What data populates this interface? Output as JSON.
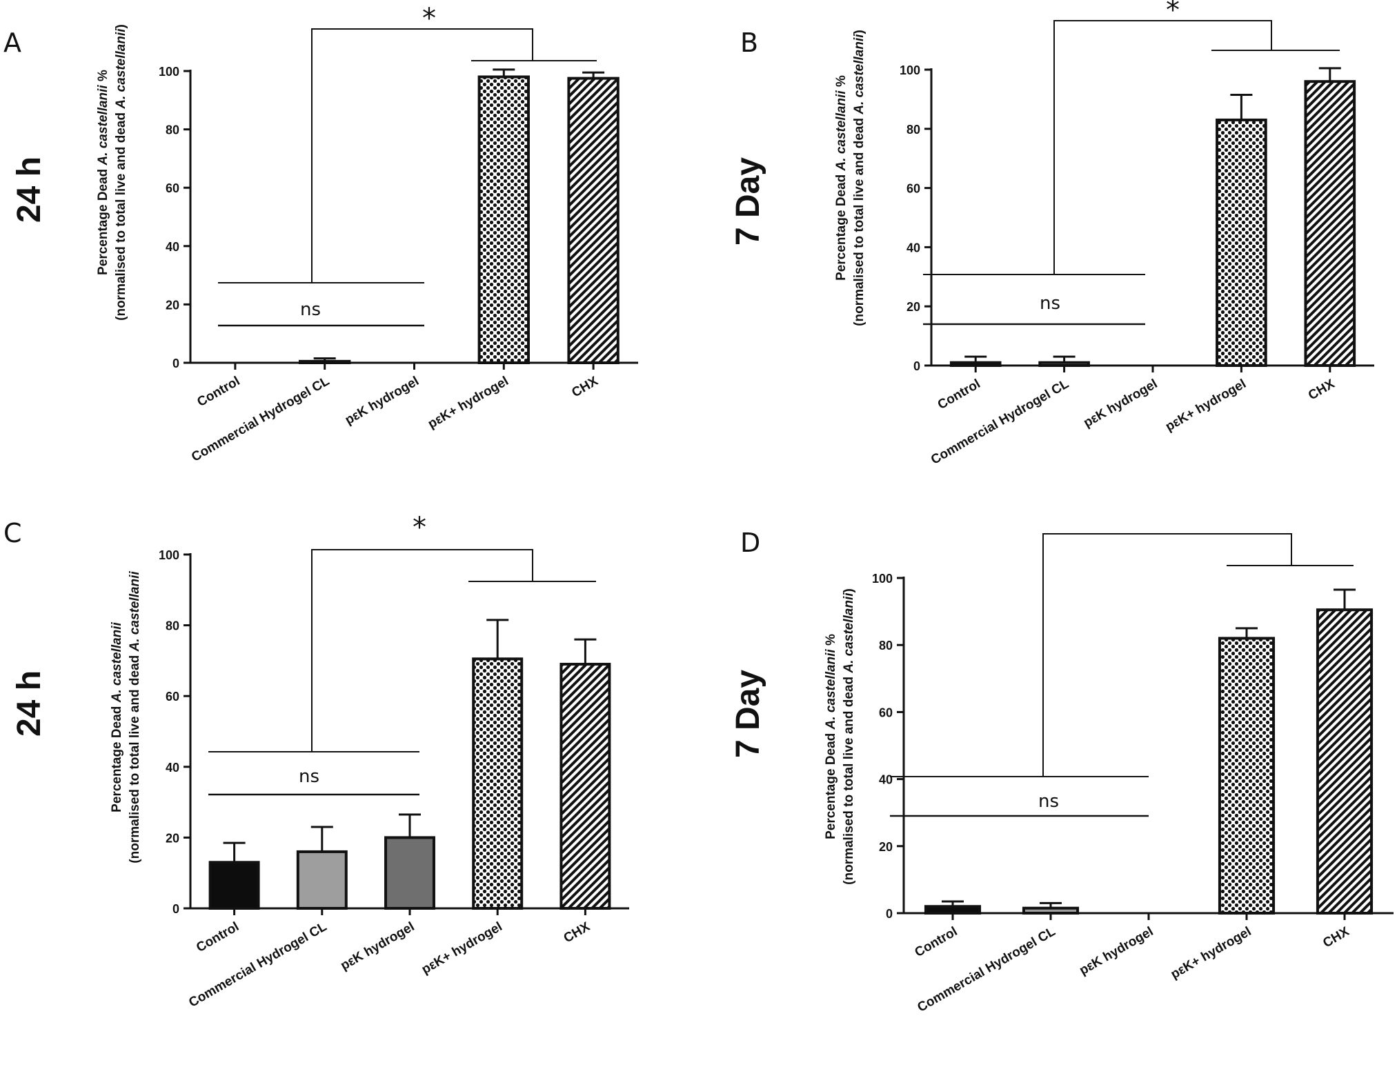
{
  "colors": {
    "axis": "#111111",
    "control_fill": "#0d0d0d",
    "commercial_fill": "#9e9e9e",
    "pek_fill": "#6f6f6f",
    "pattern_fill": "#ffffff"
  },
  "chart_data": [
    {
      "panel": "A",
      "time": "24 h",
      "type": "bar",
      "ylabel_line1": "Percentage Dead A. castellanii %",
      "ylabel_line2": "(normalised to total live and dead A. castellanii)",
      "categories": [
        "Control",
        "Commercial Hydrogel CL",
        "pεK hydrogel",
        "pεK+ hydrogel",
        "CHX"
      ],
      "values": [
        0,
        0.5,
        0,
        98,
        97.5
      ],
      "errors": [
        0,
        1,
        0,
        2.5,
        2
      ],
      "fills": [
        "solid-black",
        "solid-gray",
        "solid-darkgray",
        "dots",
        "hatch"
      ],
      "ylim": [
        0,
        100
      ],
      "yticks": [
        0,
        20,
        40,
        60,
        80,
        100
      ],
      "annotations": {
        "ns": "ns",
        "star": "*"
      }
    },
    {
      "panel": "B",
      "time": "7 Day",
      "type": "bar",
      "ylabel_line1": "Percentage Dead A. castellanii %",
      "ylabel_line2": "(normalised to total live and dead A. castellanii)",
      "categories": [
        "Control",
        "Commercial Hydrogel CL",
        "pεK hydrogel",
        "pεK+ hydrogel",
        "CHX"
      ],
      "values": [
        1,
        1,
        0,
        83,
        96
      ],
      "errors": [
        2,
        2,
        0,
        8.5,
        4.5
      ],
      "fills": [
        "solid-black",
        "solid-gray",
        "solid-darkgray",
        "dots",
        "hatch"
      ],
      "ylim": [
        0,
        100
      ],
      "yticks": [
        0,
        20,
        40,
        60,
        80,
        100
      ],
      "annotations": {
        "ns": "ns",
        "star": "*"
      }
    },
    {
      "panel": "C",
      "time": "24 h",
      "type": "bar",
      "ylabel_line1": "Percentage Dead A. castellanii",
      "ylabel_line2": "(normalised to total live and dead A. castellanii",
      "categories": [
        "Control",
        "Commercial Hydrogel CL",
        "pεK hydrogel",
        "pεK+ hydrogel",
        "CHX"
      ],
      "values": [
        13,
        16,
        20,
        70.5,
        69
      ],
      "errors": [
        5.5,
        7,
        6.5,
        11,
        7
      ],
      "fills": [
        "solid-black",
        "solid-gray",
        "solid-darkgray",
        "dots",
        "hatch"
      ],
      "ylim": [
        0,
        100
      ],
      "yticks": [
        0,
        20,
        40,
        60,
        80,
        100
      ],
      "annotations": {
        "ns": "ns",
        "star": "*"
      }
    },
    {
      "panel": "D",
      "time": "7 Day",
      "type": "bar",
      "ylabel_line1": "Percentage Dead A. castellanii %",
      "ylabel_line2": "(normalised to total live and dead A. castellanii)",
      "categories": [
        "Control",
        "Commercial Hydrogel CL",
        "pεK hydrogel",
        "pεK+ hydrogel",
        "CHX"
      ],
      "values": [
        2,
        1.5,
        0,
        82,
        90.5
      ],
      "errors": [
        1.5,
        1.5,
        0,
        3,
        6
      ],
      "fills": [
        "solid-black",
        "solid-gray",
        "solid-darkgray",
        "dots",
        "hatch"
      ],
      "ylim": [
        0,
        100
      ],
      "yticks": [
        0,
        20,
        40,
        60,
        80,
        100
      ],
      "annotations": {
        "ns": "ns",
        "star": ""
      }
    }
  ]
}
